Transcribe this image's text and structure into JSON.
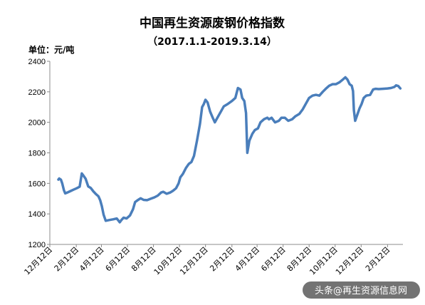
{
  "chart_data": {
    "type": "line",
    "title": "中国再生资源废钢价格指数",
    "subtitle": "（2017.1.1-2019.3.14）",
    "ylabel": "单位：元/吨",
    "ylim": [
      1200,
      2400
    ],
    "yticks": [
      1200,
      1400,
      1600,
      1800,
      2000,
      2200,
      2400
    ],
    "xlim": [
      "2016-12-12",
      "2019-03-20"
    ],
    "xticks": [
      {
        "date": "2016-12-12",
        "label": "12月12日"
      },
      {
        "date": "2017-02-12",
        "label": "2月12日"
      },
      {
        "date": "2017-04-12",
        "label": "4月12日"
      },
      {
        "date": "2017-06-12",
        "label": "6月12日"
      },
      {
        "date": "2017-08-12",
        "label": "8月12日"
      },
      {
        "date": "2017-10-12",
        "label": "10月12日"
      },
      {
        "date": "2017-12-12",
        "label": "12月12日"
      },
      {
        "date": "2018-02-12",
        "label": "2月12日"
      },
      {
        "date": "2018-04-12",
        "label": "4月12日"
      },
      {
        "date": "2018-06-12",
        "label": "6月12日"
      },
      {
        "date": "2018-08-12",
        "label": "8月12日"
      },
      {
        "date": "2018-10-12",
        "label": "10月12日"
      },
      {
        "date": "2018-12-12",
        "label": "12月12日"
      },
      {
        "date": "2019-02-12",
        "label": "2月12日"
      }
    ],
    "grid": false,
    "series": [
      {
        "color": "#4a7ebb",
        "points": [
          [
            "2017-01-01",
            1625
          ],
          [
            "2017-01-03",
            1632
          ],
          [
            "2017-01-07",
            1624
          ],
          [
            "2017-01-10",
            1600
          ],
          [
            "2017-01-14",
            1555
          ],
          [
            "2017-01-17",
            1535
          ],
          [
            "2017-01-22",
            1540
          ],
          [
            "2017-01-28",
            1548
          ],
          [
            "2017-02-05",
            1558
          ],
          [
            "2017-02-13",
            1568
          ],
          [
            "2017-02-20",
            1578
          ],
          [
            "2017-02-25",
            1665
          ],
          [
            "2017-03-01",
            1650
          ],
          [
            "2017-03-06",
            1630
          ],
          [
            "2017-03-12",
            1580
          ],
          [
            "2017-03-18",
            1570
          ],
          [
            "2017-03-24",
            1548
          ],
          [
            "2017-03-30",
            1530
          ],
          [
            "2017-04-05",
            1515
          ],
          [
            "2017-04-09",
            1490
          ],
          [
            "2017-04-13",
            1450
          ],
          [
            "2017-04-17",
            1395
          ],
          [
            "2017-04-22",
            1355
          ],
          [
            "2017-05-01",
            1360
          ],
          [
            "2017-05-10",
            1365
          ],
          [
            "2017-05-18",
            1370
          ],
          [
            "2017-05-25",
            1345
          ],
          [
            "2017-05-29",
            1360
          ],
          [
            "2017-06-03",
            1375
          ],
          [
            "2017-06-10",
            1370
          ],
          [
            "2017-06-18",
            1390
          ],
          [
            "2017-06-25",
            1430
          ],
          [
            "2017-06-30",
            1478
          ],
          [
            "2017-07-06",
            1490
          ],
          [
            "2017-07-13",
            1502
          ],
          [
            "2017-07-20",
            1492
          ],
          [
            "2017-07-28",
            1490
          ],
          [
            "2017-08-06",
            1500
          ],
          [
            "2017-08-14",
            1508
          ],
          [
            "2017-08-22",
            1520
          ],
          [
            "2017-08-30",
            1540
          ],
          [
            "2017-09-04",
            1545
          ],
          [
            "2017-09-12",
            1532
          ],
          [
            "2017-09-20",
            1540
          ],
          [
            "2017-09-27",
            1552
          ],
          [
            "2017-10-04",
            1568
          ],
          [
            "2017-10-10",
            1600
          ],
          [
            "2017-10-14",
            1640
          ],
          [
            "2017-10-20",
            1662
          ],
          [
            "2017-10-27",
            1700
          ],
          [
            "2017-11-03",
            1728
          ],
          [
            "2017-11-09",
            1740
          ],
          [
            "2017-11-15",
            1780
          ],
          [
            "2017-11-22",
            1880
          ],
          [
            "2017-11-29",
            1990
          ],
          [
            "2017-12-04",
            2100
          ],
          [
            "2017-12-08",
            2120
          ],
          [
            "2017-12-12",
            2148
          ],
          [
            "2017-12-17",
            2130
          ],
          [
            "2017-12-23",
            2070
          ],
          [
            "2017-12-29",
            2030
          ],
          [
            "2018-01-03",
            2000
          ],
          [
            "2018-01-09",
            2030
          ],
          [
            "2018-01-17",
            2070
          ],
          [
            "2018-01-24",
            2105
          ],
          [
            "2018-02-02",
            2120
          ],
          [
            "2018-02-12",
            2140
          ],
          [
            "2018-02-20",
            2160
          ],
          [
            "2018-02-26",
            2225
          ],
          [
            "2018-03-04",
            2215
          ],
          [
            "2018-03-08",
            2160
          ],
          [
            "2018-03-13",
            2140
          ],
          [
            "2018-03-17",
            2060
          ],
          [
            "2018-03-20",
            1800
          ],
          [
            "2018-03-25",
            1880
          ],
          [
            "2018-04-01",
            1925
          ],
          [
            "2018-04-07",
            1950
          ],
          [
            "2018-04-14",
            1960
          ],
          [
            "2018-04-20",
            2000
          ],
          [
            "2018-04-28",
            2020
          ],
          [
            "2018-05-06",
            2030
          ],
          [
            "2018-05-10",
            2020
          ],
          [
            "2018-05-16",
            2030
          ],
          [
            "2018-05-24",
            2000
          ],
          [
            "2018-06-02",
            2010
          ],
          [
            "2018-06-08",
            2030
          ],
          [
            "2018-06-16",
            2030
          ],
          [
            "2018-06-24",
            2010
          ],
          [
            "2018-07-03",
            2020
          ],
          [
            "2018-07-11",
            2040
          ],
          [
            "2018-07-20",
            2055
          ],
          [
            "2018-07-28",
            2085
          ],
          [
            "2018-08-06",
            2130
          ],
          [
            "2018-08-12",
            2160
          ],
          [
            "2018-08-20",
            2175
          ],
          [
            "2018-08-28",
            2180
          ],
          [
            "2018-09-05",
            2175
          ],
          [
            "2018-09-13",
            2200
          ],
          [
            "2018-09-20",
            2220
          ],
          [
            "2018-09-28",
            2240
          ],
          [
            "2018-10-06",
            2250
          ],
          [
            "2018-10-14",
            2250
          ],
          [
            "2018-10-22",
            2262
          ],
          [
            "2018-10-30",
            2280
          ],
          [
            "2018-11-05",
            2295
          ],
          [
            "2018-11-10",
            2280
          ],
          [
            "2018-11-15",
            2250
          ],
          [
            "2018-11-20",
            2240
          ],
          [
            "2018-11-23",
            2205
          ],
          [
            "2018-11-25",
            2080
          ],
          [
            "2018-11-28",
            2010
          ],
          [
            "2018-12-03",
            2050
          ],
          [
            "2018-12-08",
            2090
          ],
          [
            "2018-12-13",
            2120
          ],
          [
            "2018-12-18",
            2160
          ],
          [
            "2018-12-24",
            2175
          ],
          [
            "2019-01-02",
            2180
          ],
          [
            "2019-01-09",
            2215
          ],
          [
            "2019-01-15",
            2220
          ],
          [
            "2019-01-22",
            2218
          ],
          [
            "2019-02-01",
            2220
          ],
          [
            "2019-02-12",
            2222
          ],
          [
            "2019-02-20",
            2225
          ],
          [
            "2019-02-28",
            2232
          ],
          [
            "2019-03-04",
            2242
          ],
          [
            "2019-03-09",
            2238
          ],
          [
            "2019-03-14",
            2222
          ]
        ]
      }
    ]
  },
  "watermark": "头条@再生资源信息网"
}
